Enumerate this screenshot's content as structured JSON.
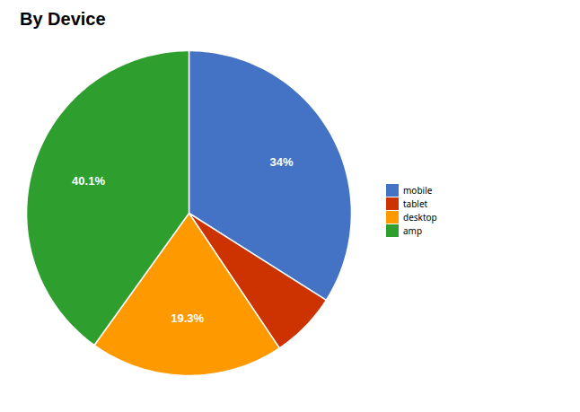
{
  "chart_data": {
    "type": "pie",
    "title": "By Device",
    "categories": [
      "mobile",
      "tablet",
      "desktop",
      "amp"
    ],
    "values": [
      34.0,
      6.6,
      19.3,
      40.1
    ],
    "value_labels": [
      "34%",
      null,
      "19.3%",
      "40.1%"
    ],
    "colors": [
      "#4472C4",
      "#CC3300",
      "#FF9900",
      "#2E9E2E"
    ],
    "data_labels": true,
    "legend": "right"
  }
}
